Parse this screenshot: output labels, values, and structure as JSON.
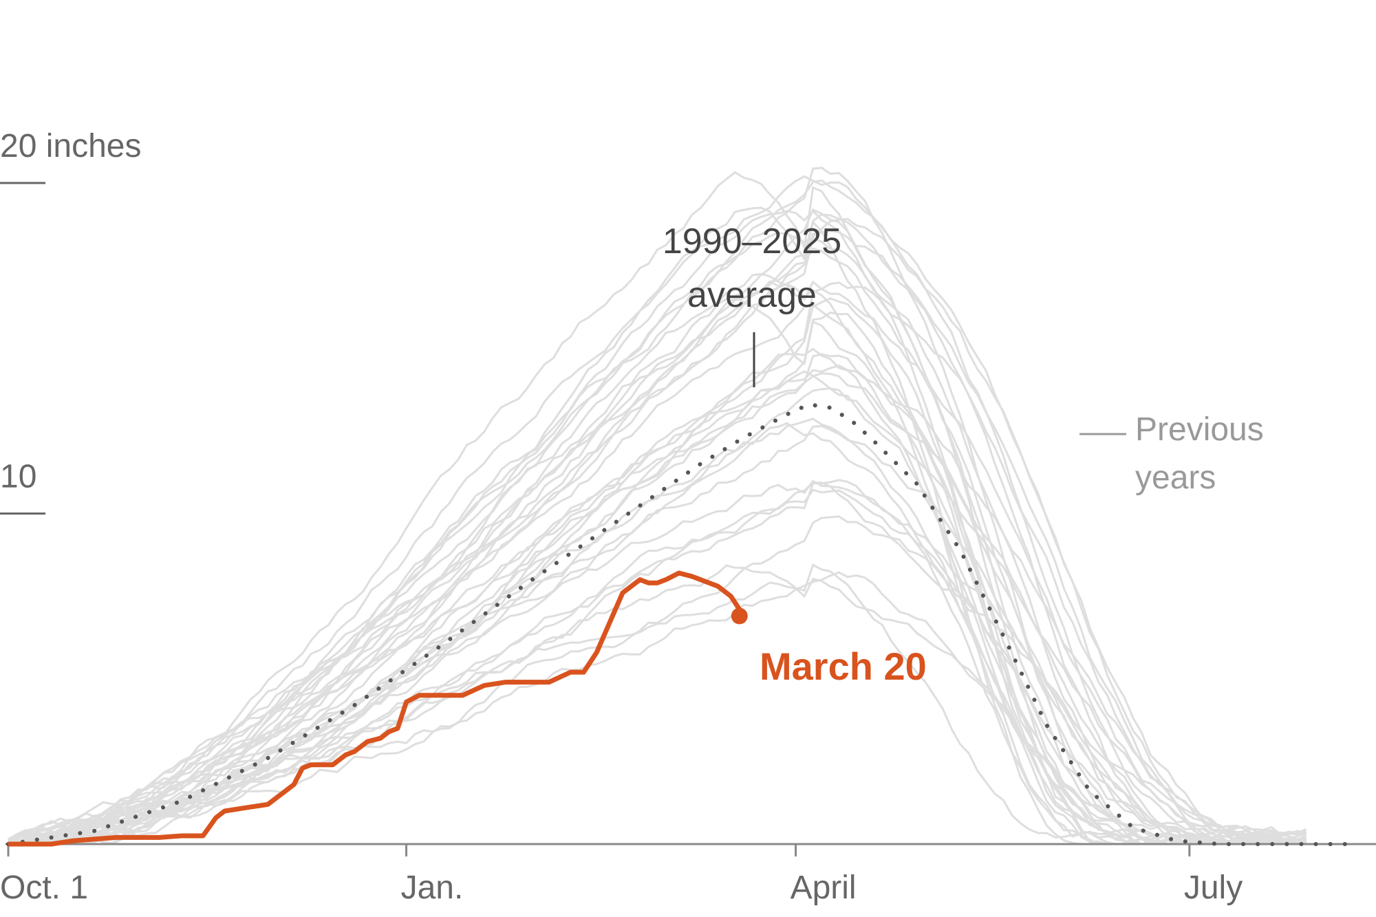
{
  "chart_data": {
    "type": "line",
    "ylabel_unit": "inches",
    "y_ticks": [
      {
        "value": 10,
        "label": "10"
      },
      {
        "value": 20,
        "label": "20 inches"
      }
    ],
    "x_ticks": [
      {
        "day": 0,
        "label": "Oct. 1"
      },
      {
        "day": 92,
        "label": "Jan."
      },
      {
        "day": 182,
        "label": "April"
      },
      {
        "day": 273,
        "label": "July"
      }
    ],
    "xlim": [
      0,
      312
    ],
    "ylim": [
      0,
      25
    ],
    "grid": false,
    "annotations": {
      "average_label_line1": "1990–2025",
      "average_label_line2": "average",
      "previous_label_line1": "Previous",
      "previous_label_line2": "years",
      "current_label": "March 20"
    },
    "colors": {
      "current": "#d9531e",
      "average": "#555555",
      "previous": "#dedede",
      "axis": "#888888"
    },
    "series": [
      {
        "key": "average",
        "x": [
          0,
          20,
          40,
          60,
          80,
          100,
          120,
          140,
          160,
          170,
          180,
          185,
          190,
          195,
          200,
          210,
          220,
          230,
          240,
          250,
          260,
          270,
          280,
          290,
          300,
          312
        ],
        "y": [
          0,
          0.4,
          1.3,
          2.6,
          4.2,
          6.0,
          7.9,
          9.7,
          11.5,
          12.3,
          13.0,
          13.3,
          13.2,
          12.8,
          12.2,
          10.9,
          8.9,
          6.3,
          3.6,
          1.6,
          0.5,
          0.1,
          0,
          0,
          0,
          0
        ]
      },
      {
        "key": "current",
        "x": [
          0,
          10,
          15,
          20,
          25,
          30,
          35,
          40,
          45,
          48,
          50,
          55,
          60,
          62,
          64,
          66,
          68,
          70,
          72,
          75,
          78,
          80,
          83,
          86,
          88,
          90,
          92,
          95,
          100,
          105,
          110,
          115,
          120,
          125,
          130,
          133,
          136,
          140,
          142,
          144,
          146,
          148,
          150,
          152,
          155,
          158,
          160,
          162,
          164,
          167,
          170,
          169
        ],
        "y": [
          0,
          0,
          0.1,
          0.15,
          0.2,
          0.2,
          0.2,
          0.25,
          0.25,
          0.8,
          1.0,
          1.1,
          1.2,
          1.4,
          1.6,
          1.8,
          2.3,
          2.4,
          2.4,
          2.4,
          2.7,
          2.8,
          3.1,
          3.2,
          3.4,
          3.5,
          4.3,
          4.5,
          4.5,
          4.5,
          4.8,
          4.9,
          4.9,
          4.9,
          5.2,
          5.2,
          5.8,
          7.0,
          7.6,
          7.8,
          8.0,
          7.9,
          7.9,
          8.0,
          8.2,
          8.1,
          8.0,
          7.9,
          7.8,
          7.5,
          6.9,
          6.9
        ]
      }
    ],
    "previous_years_count": 36
  }
}
